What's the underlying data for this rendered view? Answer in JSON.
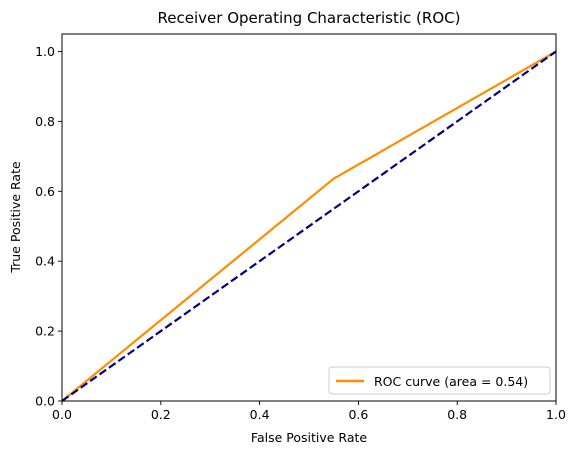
{
  "chart_data": {
    "type": "line",
    "title": "Receiver Operating Characteristic (ROC)",
    "xlabel": "False Positive Rate",
    "ylabel": "True Positive Rate",
    "xlim": [
      0.0,
      1.0
    ],
    "ylim": [
      0.0,
      1.05
    ],
    "x_ticks": [
      "0.0",
      "0.2",
      "0.4",
      "0.6",
      "0.8",
      "1.0"
    ],
    "y_ticks": [
      "0.0",
      "0.2",
      "0.4",
      "0.6",
      "0.8",
      "1.0"
    ],
    "x_tick_values": [
      0.0,
      0.2,
      0.4,
      0.6,
      0.8,
      1.0
    ],
    "y_tick_values": [
      0.0,
      0.2,
      0.4,
      0.6,
      0.8,
      1.0
    ],
    "grid": false,
    "legend_position": "lower right",
    "series": [
      {
        "name": "ROC curve (area = 0.54)",
        "color": "#ff8c00",
        "style": "solid",
        "x": [
          0.0,
          0.55,
          1.0
        ],
        "y": [
          0.0,
          0.636,
          1.0
        ]
      },
      {
        "color": "#000080",
        "style": "dashed",
        "x": [
          0.0,
          1.0
        ],
        "y": [
          0.0,
          1.0
        ]
      }
    ]
  }
}
